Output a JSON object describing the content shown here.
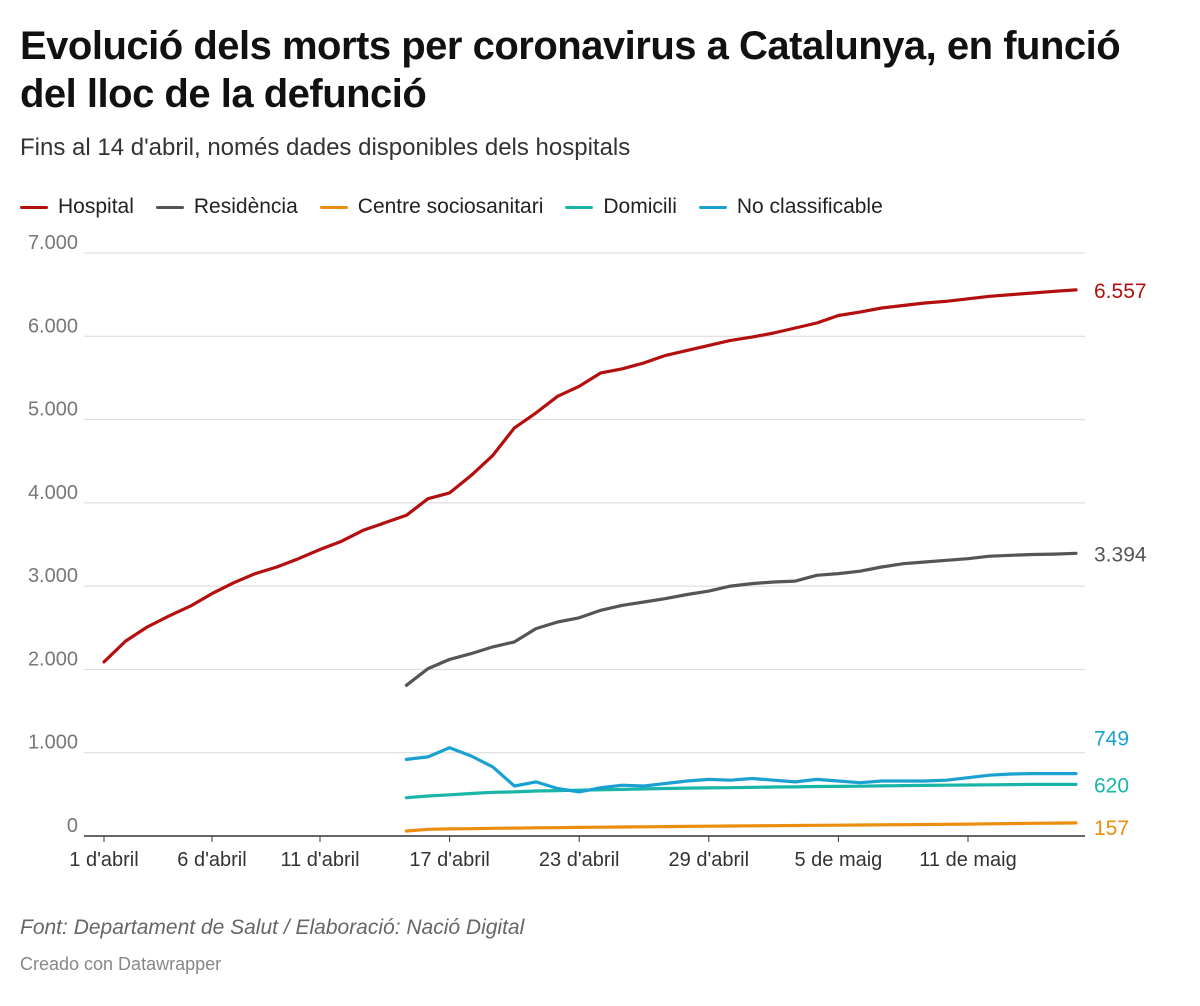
{
  "title": "Evolució dels morts per coronavirus a Catalunya, en funció del lloc de la defunció",
  "subtitle": "Fins al 14 d'abril, només dades disponibles dels hospitals",
  "footer": {
    "source": "Font: Departament de Salut / Elaboració: Nació Digital",
    "credit": "Creado con Datawrapper"
  },
  "chart_data": {
    "type": "line",
    "title": "Evolució dels morts per coronavirus a Catalunya, en funció del lloc de la defunció",
    "subtitle": "Fins al 14 d'abril, només dades disponibles dels hospitals",
    "xlabel": "",
    "ylabel": "",
    "x_start": "1 d'abril",
    "x_range": [
      0,
      46
    ],
    "ylim": [
      0,
      7000
    ],
    "yticks": [
      0,
      1000,
      2000,
      3000,
      4000,
      5000,
      6000,
      7000
    ],
    "ytick_labels": [
      "0",
      "1.000",
      "2.000",
      "3.000",
      "4.000",
      "5.000",
      "6.000",
      "7.000"
    ],
    "xticks": [
      {
        "day": 0,
        "label": "1 d'abril"
      },
      {
        "day": 5,
        "label": "6 d'abril"
      },
      {
        "day": 10,
        "label": "11 d'abril"
      },
      {
        "day": 16,
        "label": "17 d'abril"
      },
      {
        "day": 22,
        "label": "23 d'abril"
      },
      {
        "day": 28,
        "label": "29 d'abril"
      },
      {
        "day": 34,
        "label": "5 de maig"
      },
      {
        "day": 40,
        "label": "11 de maig"
      }
    ],
    "grid": true,
    "legend_position": "top-left",
    "series": [
      {
        "name": "Hospital",
        "color": "#b30f0f",
        "start_day": 0,
        "end_label": "6.557",
        "values": [
          2090,
          2340,
          2510,
          2640,
          2760,
          2910,
          3040,
          3150,
          3230,
          3330,
          3440,
          3540,
          3670,
          3760,
          3850,
          4050,
          4120,
          4330,
          4570,
          4900,
          5080,
          5280,
          5400,
          5560,
          5610,
          5680,
          5770,
          5830,
          5890,
          5950,
          5990,
          6040,
          6100,
          6160,
          6250,
          6290,
          6340,
          6370,
          6400,
          6420,
          6450,
          6480,
          6500,
          6520,
          6540,
          6557
        ]
      },
      {
        "name": "Residència",
        "color": "#555555",
        "start_day": 14,
        "end_label": "3.394",
        "values": [
          1810,
          2010,
          2120,
          2190,
          2270,
          2330,
          2490,
          2570,
          2620,
          2710,
          2770,
          2810,
          2850,
          2900,
          2940,
          3000,
          3030,
          3050,
          3060,
          3130,
          3150,
          3180,
          3230,
          3270,
          3290,
          3310,
          3330,
          3360,
          3370,
          3380,
          3385,
          3394
        ]
      },
      {
        "name": "Centre sociosanitari",
        "color": "#eb8d0e",
        "start_day": 14,
        "end_label": "157",
        "values": [
          60,
          80,
          85,
          88,
          92,
          95,
          98,
          100,
          103,
          106,
          108,
          110,
          113,
          115,
          118,
          120,
          122,
          124,
          126,
          128,
          130,
          132,
          134,
          136,
          138,
          140,
          143,
          146,
          149,
          152,
          155,
          157
        ]
      },
      {
        "name": "Domicili",
        "color": "#18b5a8",
        "start_day": 14,
        "end_label": "620",
        "values": [
          460,
          480,
          495,
          510,
          525,
          530,
          540,
          545,
          550,
          555,
          560,
          565,
          570,
          575,
          578,
          580,
          584,
          588,
          590,
          594,
          596,
          598,
          602,
          605,
          607,
          610,
          612,
          615,
          617,
          619,
          620,
          620
        ]
      },
      {
        "name": "No classificable",
        "color": "#1aa1d1",
        "start_day": 14,
        "end_label": "749",
        "values": [
          920,
          950,
          1060,
          960,
          830,
          600,
          650,
          570,
          530,
          580,
          610,
          600,
          630,
          660,
          680,
          670,
          690,
          670,
          650,
          680,
          660,
          640,
          660,
          660,
          660,
          670,
          700,
          730,
          745,
          749,
          749,
          749
        ]
      }
    ]
  }
}
